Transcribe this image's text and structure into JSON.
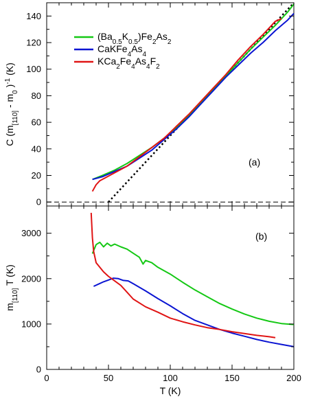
{
  "chart_data": [
    {
      "panel": "top",
      "type": "line",
      "panel_label": "(a)",
      "ylabel": {
        "prefix": "C (m",
        "sub1": "[110]",
        "mid": " - m",
        "sub2": "0",
        "close": ")",
        "sup": "-1",
        "unit": " (K)"
      },
      "ylim": [
        -3,
        150
      ],
      "yticks": [
        0,
        20,
        40,
        60,
        80,
        100,
        120,
        140
      ],
      "xlim": [
        0,
        200
      ],
      "grid": false,
      "legend": {
        "placement": "top-left",
        "entries": [
          {
            "series": "green",
            "parts": [
              [
                "(Ba",
                ""
              ],
              [
                "0.5",
                "sub"
              ],
              [
                "K",
                ""
              ],
              [
                "0.5",
                "sub"
              ],
              [
                ")Fe",
                ""
              ],
              [
                "2",
                "sub"
              ],
              [
                "As",
                ""
              ],
              [
                "2",
                "sub"
              ]
            ]
          },
          {
            "series": "blue",
            "parts": [
              [
                "CaKFe",
                ""
              ],
              [
                "4",
                "sub"
              ],
              [
                "As",
                ""
              ],
              [
                "4",
                "sub"
              ]
            ]
          },
          {
            "series": "red",
            "parts": [
              [
                "KCa",
                ""
              ],
              [
                "2",
                "sub"
              ],
              [
                "Fe",
                ""
              ],
              [
                "4",
                "sub"
              ],
              [
                "As",
                ""
              ],
              [
                "4",
                "sub"
              ],
              [
                "F",
                ""
              ],
              [
                "2",
                "sub"
              ]
            ]
          }
        ]
      },
      "series": [
        {
          "key": "green",
          "color": "#14c814",
          "x": [
            37,
            45,
            55,
            65,
            75,
            85,
            95,
            105,
            115,
            125,
            135,
            145,
            155,
            165,
            175,
            185,
            195,
            200
          ],
          "y": [
            17,
            20,
            24,
            29,
            35,
            41,
            48,
            56,
            65,
            75,
            85,
            95,
            105,
            115,
            124,
            133,
            143,
            149
          ]
        },
        {
          "key": "blue",
          "color": "#0a14d2",
          "x": [
            37,
            45,
            55,
            65,
            75,
            85,
            95,
            105,
            115,
            125,
            135,
            145,
            155,
            165,
            175,
            185,
            195,
            200
          ],
          "y": [
            17,
            19,
            23,
            27,
            33,
            39,
            47,
            55,
            64,
            74,
            84,
            94,
            103,
            112,
            120,
            129,
            137,
            142
          ]
        },
        {
          "key": "red",
          "color": "#e01414",
          "x": [
            37,
            40,
            43,
            47,
            55,
            65,
            75,
            85,
            95,
            105,
            115,
            125,
            135,
            145,
            155,
            165,
            175,
            180,
            185,
            190
          ],
          "y": [
            8,
            13,
            16,
            18,
            22,
            27,
            34,
            41,
            48,
            57,
            66,
            76,
            86,
            96,
            107,
            117,
            126,
            131,
            136,
            138
          ]
        }
      ],
      "reference_lines": [
        {
          "style": "dotted",
          "x": [
            50,
            200
          ],
          "y": [
            0,
            150
          ]
        },
        {
          "style": "dashed",
          "x": [
            0,
            200
          ],
          "y": [
            0,
            0
          ]
        }
      ]
    },
    {
      "panel": "bottom",
      "type": "line",
      "panel_label": "(b)",
      "ylabel": {
        "prefix": "m",
        "sub1": "[110]",
        "unit": " T (K)"
      },
      "xlabel": "T (K)",
      "xlim": [
        0,
        200
      ],
      "xticks": [
        0,
        50,
        100,
        150,
        200
      ],
      "ylim": [
        0,
        3600
      ],
      "yticks": [
        0,
        1000,
        2000,
        3000
      ],
      "grid": false,
      "series": [
        {
          "key": "green",
          "color": "#14c814",
          "x": [
            37,
            40,
            43,
            46,
            49,
            52,
            55,
            60,
            65,
            70,
            75,
            78,
            80,
            85,
            90,
            100,
            110,
            120,
            130,
            140,
            150,
            160,
            170,
            180,
            190,
            200
          ],
          "y": [
            2550,
            2750,
            2800,
            2700,
            2780,
            2720,
            2760,
            2700,
            2650,
            2560,
            2470,
            2320,
            2400,
            2350,
            2250,
            2100,
            1920,
            1750,
            1600,
            1450,
            1330,
            1220,
            1130,
            1060,
            1010,
            990
          ]
        },
        {
          "key": "blue",
          "color": "#0a14d2",
          "x": [
            38,
            42,
            46,
            50,
            54,
            58,
            62,
            66,
            70,
            80,
            90,
            100,
            110,
            120,
            130,
            140,
            150,
            160,
            170,
            180,
            190,
            200
          ],
          "y": [
            1830,
            1880,
            1930,
            1970,
            2010,
            2000,
            1960,
            1950,
            1890,
            1730,
            1560,
            1400,
            1230,
            1080,
            980,
            880,
            800,
            730,
            660,
            600,
            550,
            500
          ]
        },
        {
          "key": "red",
          "color": "#e01414",
          "x": [
            36,
            37,
            38,
            40,
            43,
            46,
            50,
            55,
            60,
            65,
            70,
            80,
            90,
            100,
            110,
            120,
            130,
            140,
            150,
            160,
            170,
            180,
            185
          ],
          "y": [
            3450,
            2900,
            2600,
            2350,
            2250,
            2150,
            2050,
            1950,
            1850,
            1700,
            1550,
            1380,
            1260,
            1130,
            1050,
            980,
            920,
            880,
            830,
            790,
            750,
            720,
            700
          ]
        }
      ]
    }
  ]
}
